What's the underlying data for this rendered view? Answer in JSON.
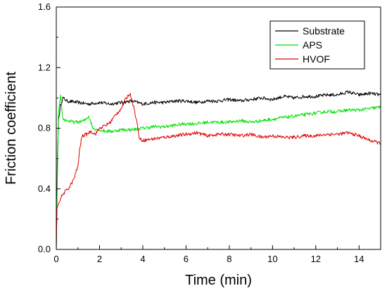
{
  "chart_data": {
    "type": "line",
    "title": "",
    "xlabel": "Time (min)",
    "ylabel": "Friction coefficient",
    "xlim": [
      0,
      15
    ],
    "ylim": [
      0,
      1.6
    ],
    "x_ticks": [
      "0",
      "2",
      "4",
      "6",
      "8",
      "10",
      "12",
      "14"
    ],
    "y_ticks": [
      "0.0",
      "0.4",
      "0.8",
      "1.2",
      "1.6"
    ],
    "grid": false,
    "legend_position": "top-right",
    "series": [
      {
        "name": "Substrate",
        "color": "#000000",
        "points": [
          [
            0,
            0
          ],
          [
            0.05,
            0.58
          ],
          [
            0.1,
            0.85
          ],
          [
            0.2,
            0.95
          ],
          [
            0.3,
            1.0
          ],
          [
            0.5,
            0.98
          ],
          [
            1,
            0.97
          ],
          [
            1.5,
            0.96
          ],
          [
            2,
            0.97
          ],
          [
            2.5,
            0.96
          ],
          [
            3,
            0.97
          ],
          [
            3.5,
            0.98
          ],
          [
            4,
            0.96
          ],
          [
            4.5,
            0.97
          ],
          [
            5,
            0.97
          ],
          [
            5.5,
            0.98
          ],
          [
            6,
            0.98
          ],
          [
            6.5,
            0.97
          ],
          [
            7,
            0.98
          ],
          [
            7.5,
            0.98
          ],
          [
            8,
            0.99
          ],
          [
            8.5,
            0.98
          ],
          [
            9,
            0.99
          ],
          [
            9.5,
            1.0
          ],
          [
            10,
            0.99
          ],
          [
            10.5,
            1.01
          ],
          [
            11,
            1.0
          ],
          [
            11.5,
            1.01
          ],
          [
            12,
            1.01
          ],
          [
            12.5,
            1.02
          ],
          [
            13,
            1.02
          ],
          [
            13.5,
            1.04
          ],
          [
            14,
            1.02
          ],
          [
            14.5,
            1.03
          ],
          [
            15,
            1.02
          ]
        ]
      },
      {
        "name": "APS",
        "color": "#00e000",
        "points": [
          [
            0,
            0
          ],
          [
            0.05,
            0.45
          ],
          [
            0.1,
            0.9
          ],
          [
            0.2,
            1.01
          ],
          [
            0.3,
            0.86
          ],
          [
            0.5,
            0.85
          ],
          [
            0.8,
            0.84
          ],
          [
            1,
            0.84
          ],
          [
            1.3,
            0.85
          ],
          [
            1.5,
            0.88
          ],
          [
            1.7,
            0.8
          ],
          [
            2,
            0.79
          ],
          [
            2.3,
            0.78
          ],
          [
            2.6,
            0.78
          ],
          [
            3,
            0.79
          ],
          [
            3.5,
            0.79
          ],
          [
            4,
            0.8
          ],
          [
            4.5,
            0.81
          ],
          [
            5,
            0.81
          ],
          [
            5.5,
            0.82
          ],
          [
            6,
            0.83
          ],
          [
            6.5,
            0.83
          ],
          [
            7,
            0.84
          ],
          [
            7.5,
            0.84
          ],
          [
            8,
            0.84
          ],
          [
            8.5,
            0.85
          ],
          [
            9,
            0.84
          ],
          [
            9.5,
            0.85
          ],
          [
            10,
            0.86
          ],
          [
            10.5,
            0.87
          ],
          [
            11,
            0.88
          ],
          [
            11.5,
            0.89
          ],
          [
            12,
            0.9
          ],
          [
            12.5,
            0.91
          ],
          [
            13,
            0.91
          ],
          [
            13.5,
            0.92
          ],
          [
            14,
            0.92
          ],
          [
            14.5,
            0.93
          ],
          [
            15,
            0.94
          ]
        ]
      },
      {
        "name": "HVOF",
        "color": "#e00000",
        "points": [
          [
            0,
            0
          ],
          [
            0.03,
            0.27
          ],
          [
            0.1,
            0.3
          ],
          [
            0.2,
            0.34
          ],
          [
            0.4,
            0.38
          ],
          [
            0.6,
            0.41
          ],
          [
            0.8,
            0.46
          ],
          [
            1,
            0.55
          ],
          [
            1.1,
            0.68
          ],
          [
            1.2,
            0.75
          ],
          [
            1.4,
            0.76
          ],
          [
            1.6,
            0.78
          ],
          [
            1.8,
            0.76
          ],
          [
            2,
            0.8
          ],
          [
            2.3,
            0.82
          ],
          [
            2.5,
            0.84
          ],
          [
            2.7,
            0.88
          ],
          [
            3,
            0.93
          ],
          [
            3.2,
            0.99
          ],
          [
            3.4,
            1.03
          ],
          [
            3.5,
            0.99
          ],
          [
            3.7,
            0.86
          ],
          [
            3.85,
            0.73
          ],
          [
            4,
            0.72
          ],
          [
            4.5,
            0.73
          ],
          [
            5,
            0.74
          ],
          [
            5.5,
            0.75
          ],
          [
            6,
            0.76
          ],
          [
            6.5,
            0.77
          ],
          [
            7,
            0.75
          ],
          [
            7.5,
            0.76
          ],
          [
            8,
            0.76
          ],
          [
            8.5,
            0.75
          ],
          [
            9,
            0.76
          ],
          [
            9.5,
            0.74
          ],
          [
            10,
            0.75
          ],
          [
            10.5,
            0.74
          ],
          [
            11,
            0.74
          ],
          [
            11.5,
            0.75
          ],
          [
            12,
            0.75
          ],
          [
            12.5,
            0.76
          ],
          [
            13,
            0.76
          ],
          [
            13.5,
            0.77
          ],
          [
            14,
            0.75
          ],
          [
            14.5,
            0.72
          ],
          [
            15,
            0.7
          ]
        ]
      }
    ]
  }
}
